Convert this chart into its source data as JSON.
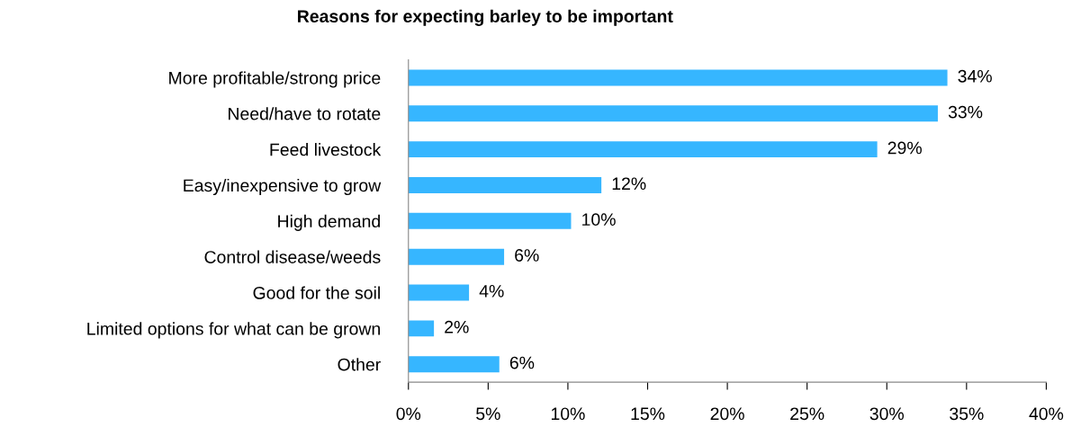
{
  "chart_data": {
    "type": "bar",
    "orientation": "horizontal",
    "title": "Reasons for expecting barley to be important",
    "categories": [
      "More profitable/strong price",
      "Need/have to rotate",
      "Feed livestock",
      "Easy/inexpensive to grow",
      "High demand",
      "Control disease/weeds",
      "Good for the soil",
      "Limited options for what can be grown",
      "Other"
    ],
    "values": [
      33.8,
      33.2,
      29.4,
      12.1,
      10.2,
      6.0,
      3.8,
      1.6,
      5.7
    ],
    "value_labels": [
      "34%",
      "33%",
      "29%",
      "12%",
      "10%",
      "6%",
      "4%",
      "2%",
      "6%"
    ],
    "color": "#36b6ff",
    "xlim": [
      0,
      40
    ],
    "xticks": [
      {
        "value": 0,
        "label": "0%"
      },
      {
        "value": 5,
        "label": "5%"
      },
      {
        "value": 10,
        "label": "10%"
      },
      {
        "value": 15,
        "label": "15%"
      },
      {
        "value": 20,
        "label": "20%"
      },
      {
        "value": 25,
        "label": "25%"
      },
      {
        "value": 30,
        "label": "30%"
      },
      {
        "value": 35,
        "label": "35%"
      },
      {
        "value": 40,
        "label": "40%"
      }
    ],
    "grid": false,
    "legend": false
  }
}
